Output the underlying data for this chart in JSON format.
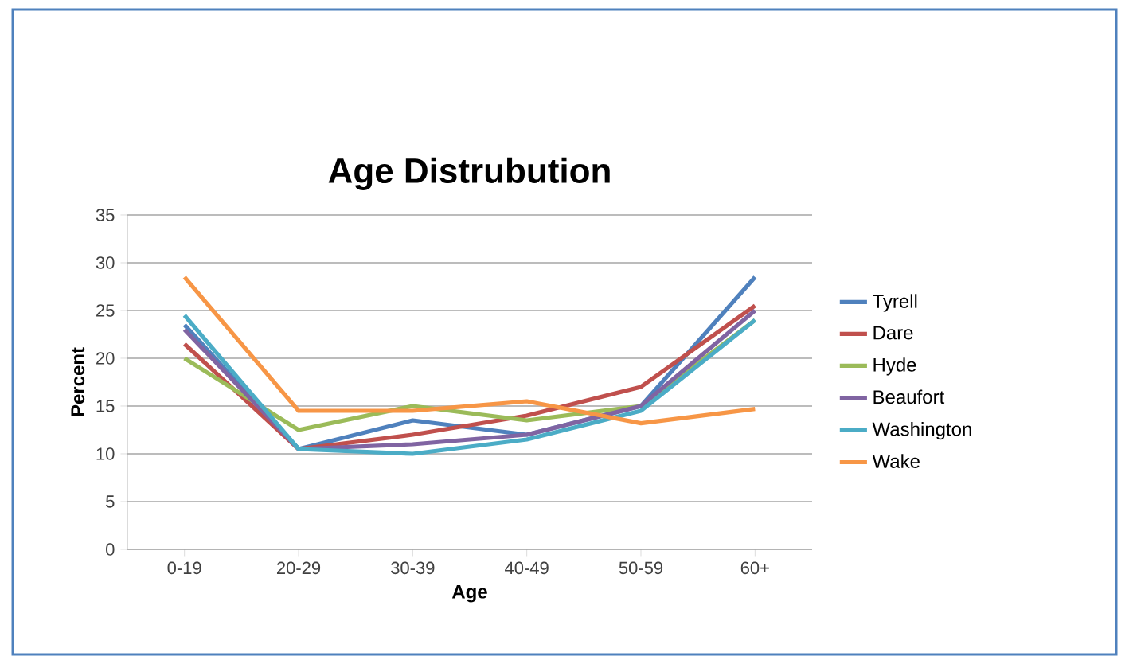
{
  "chart_data": {
    "type": "line",
    "title": "Age Distrubution",
    "xlabel": "Age",
    "ylabel": "Percent",
    "categories": [
      "0-19",
      "20-29",
      "30-39",
      "40-49",
      "50-59",
      "60+"
    ],
    "series": [
      {
        "name": "Tyrell",
        "color": "#4f81bd",
        "values": [
          23.5,
          10.5,
          13.5,
          12,
          15,
          28.5
        ]
      },
      {
        "name": "Dare",
        "color": "#c0504d",
        "values": [
          21.5,
          10.5,
          12,
          14,
          17,
          25.5
        ]
      },
      {
        "name": "Hyde",
        "color": "#9bbb59",
        "values": [
          20,
          12.5,
          15,
          13.5,
          15,
          24
        ]
      },
      {
        "name": "Beaufort",
        "color": "#8064a2",
        "values": [
          23,
          10.5,
          11,
          12,
          15,
          25
        ]
      },
      {
        "name": "Washington",
        "color": "#4bacc6",
        "values": [
          24.5,
          10.5,
          10,
          11.5,
          14.5,
          24
        ]
      },
      {
        "name": "Wake",
        "color": "#f79646",
        "values": [
          28.5,
          14.5,
          14.5,
          15.5,
          13.2,
          14.7
        ]
      }
    ],
    "ylim": [
      0,
      35
    ],
    "yticks": [
      0,
      5,
      10,
      15,
      20,
      25,
      30,
      35
    ],
    "grid": "y",
    "legend": "right",
    "marker": "none",
    "line_style": "solid"
  }
}
